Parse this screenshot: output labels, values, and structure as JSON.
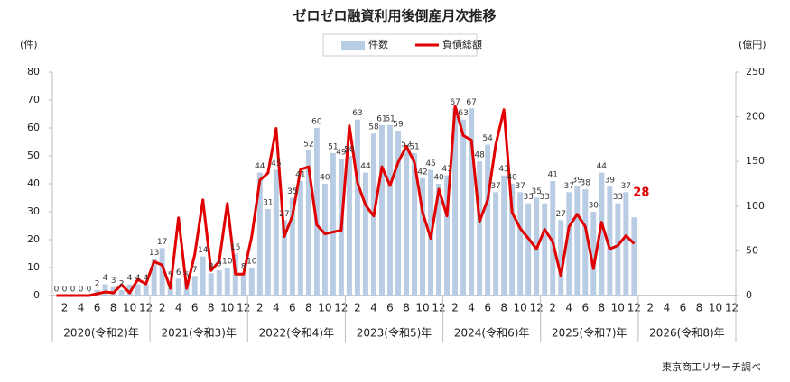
{
  "chart_data": {
    "type": "bar_line",
    "title": "ゼロゼロ融資利用後倒産月次推移",
    "y_unit": "(件)",
    "y2_unit": "(億円)",
    "source": "東京商工リサーチ調べ",
    "categories": [
      null,
      "2",
      null,
      "4",
      null,
      "6",
      null,
      "8",
      null,
      "10",
      null,
      "12",
      null,
      "2",
      null,
      "4",
      null,
      "6",
      null,
      "8",
      null,
      "10",
      null,
      "12",
      null,
      "2",
      null,
      "4",
      null,
      "6",
      null,
      "8",
      null,
      "10",
      null,
      "12",
      null,
      "2",
      null,
      "4",
      null,
      "6",
      null,
      "8",
      null,
      "10",
      null,
      "12",
      null,
      "2",
      null,
      "4",
      null,
      "6",
      null,
      "8",
      null,
      "10",
      null,
      "12",
      null,
      "2",
      null,
      "4",
      null,
      "6",
      null,
      "8",
      null,
      "10",
      null,
      "12",
      null,
      "2",
      null,
      "4",
      null,
      "6",
      null,
      "8",
      null,
      "10",
      null,
      "12"
    ],
    "year_groups": [
      "2020(令和2)年",
      "2021(令和3)年",
      "2022(令和4)年",
      "2023(令和5)年",
      "2024(令和6)年",
      "2025(令和7)年",
      "2026(令和8)年"
    ],
    "series": [
      {
        "name": "件数",
        "color": "#b8cce4",
        "axis": "y",
        "values": [
          0,
          0,
          0,
          0,
          0,
          2,
          4,
          3,
          2,
          4,
          4,
          4,
          13,
          17,
          5,
          6,
          5,
          7,
          14,
          8,
          9,
          10,
          15,
          8,
          10,
          44,
          31,
          45,
          27,
          35,
          41,
          52,
          60,
          40,
          51,
          49,
          50,
          63,
          44,
          58,
          61,
          61,
          59,
          52,
          51,
          42,
          45,
          40,
          43,
          67,
          63,
          67,
          48,
          54,
          37,
          43,
          40,
          37,
          33,
          35,
          33,
          41,
          27,
          37,
          39,
          38,
          30,
          44,
          39,
          33,
          37,
          28,
          null,
          null,
          null,
          null,
          null,
          null,
          null,
          null,
          null,
          null,
          null,
          null
        ]
      },
      {
        "name": "負債総額",
        "color": "#e00000",
        "axis": "y2",
        "values": [
          0,
          0,
          0,
          0,
          0,
          2,
          4,
          3,
          12,
          3,
          18,
          13,
          38,
          34,
          8,
          87,
          8,
          46,
          107,
          28,
          38,
          103,
          24,
          24,
          66,
          129,
          137,
          187,
          66,
          89,
          141,
          144,
          79,
          69,
          71,
          73,
          190,
          126,
          101,
          89,
          144,
          123,
          149,
          167,
          149,
          93,
          64,
          119,
          89,
          212,
          179,
          174,
          83,
          107,
          169,
          208,
          93,
          75,
          64,
          52,
          74,
          60,
          22,
          77,
          91,
          77,
          30,
          82,
          52,
          56,
          67,
          58,
          null,
          null,
          null,
          null,
          null,
          null,
          null,
          null,
          null,
          null,
          null,
          null
        ]
      }
    ],
    "ylim": [
      0,
      80
    ],
    "yticks": [
      0,
      10,
      20,
      30,
      40,
      50,
      60,
      70,
      80
    ],
    "y2lim": [
      0,
      250
    ],
    "y2ticks": [
      0,
      50,
      100,
      150,
      200,
      250
    ],
    "grid": false
  }
}
